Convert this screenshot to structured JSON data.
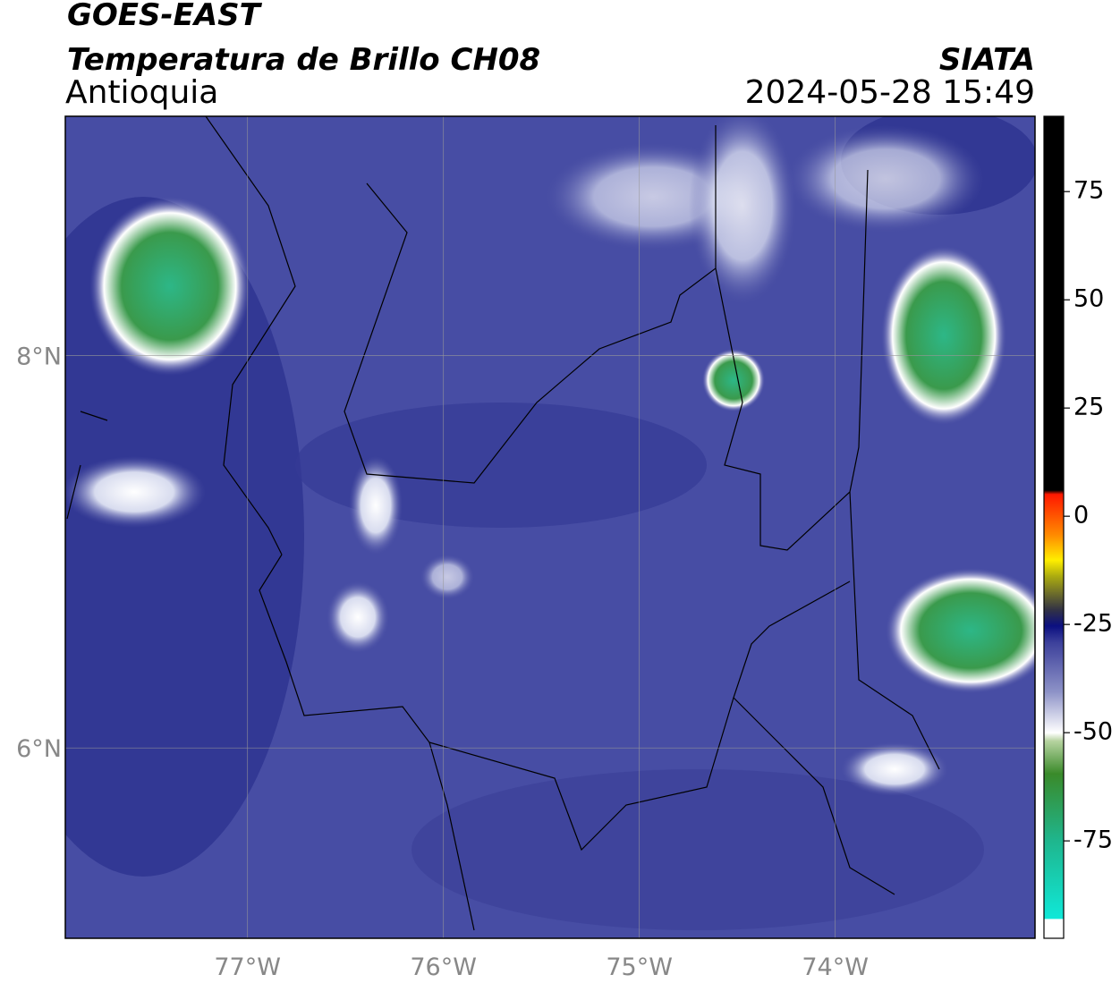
{
  "header": {
    "title": "GOES-EAST",
    "subtitle": "Temperatura de Brillo CH08",
    "region": "Antioquia",
    "source": "SIATA",
    "datetime": "2024-05-28 15:49"
  },
  "map": {
    "lonlim": [
      -77.93,
      -72.98
    ],
    "latlim": [
      5.03,
      9.22
    ],
    "lon_ticks": [
      {
        "value": -77,
        "label": "77°W"
      },
      {
        "value": -76,
        "label": "76°W"
      },
      {
        "value": -75,
        "label": "75°W"
      },
      {
        "value": -74,
        "label": "74°W"
      }
    ],
    "lat_ticks": [
      {
        "value": 8,
        "label": "8°N"
      },
      {
        "value": 6,
        "label": "6°N"
      }
    ]
  },
  "colorbar": {
    "lim": [
      -97.5,
      92.4
    ],
    "ticks": [
      75,
      50,
      25,
      0,
      -25,
      -50,
      -75
    ]
  }
}
